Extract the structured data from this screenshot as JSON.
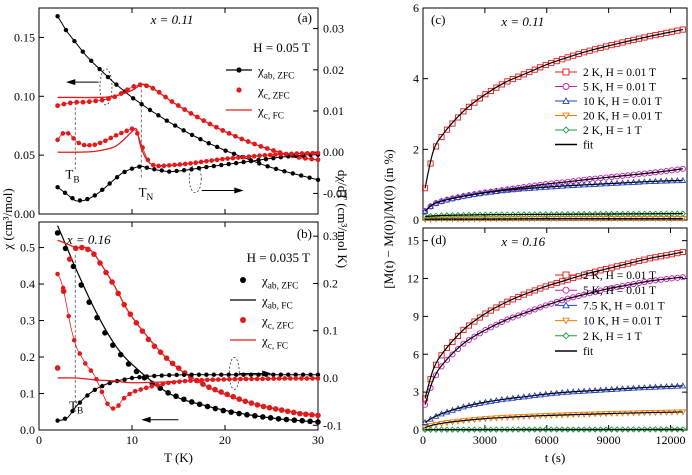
{
  "chart_data": [
    {
      "panel": "(a)",
      "type": "scatter",
      "x_param": "x = 0.11",
      "field": "H = 0.05 T",
      "xlabel": "T (K)",
      "ylabel": "χ (cm³/mol)",
      "y2label": "dχ/dT (cm³/mol K)",
      "xlim": [
        0,
        30
      ],
      "ylim": [
        0,
        0.175
      ],
      "y2lim": [
        -0.015,
        0.035
      ],
      "xticks": [
        "0",
        "10",
        "20",
        "30"
      ],
      "yticks": [
        "0.00",
        "0.05",
        "0.10",
        "0.15"
      ],
      "y2ticks": [
        "-0.01",
        "0.00",
        "0.01",
        "0.02",
        "0.03"
      ],
      "annotations": [
        "T_B",
        "T_N"
      ],
      "legend": [
        {
          "name": "χ_ab, ZFC",
          "color": "#000000",
          "style": "line-marker"
        },
        {
          "name": "χ_c, ZFC",
          "color": "#e31a1c",
          "style": "marker"
        },
        {
          "name": "χ_c, FC",
          "color": "#e31a1c",
          "style": "line"
        }
      ],
      "series": [
        {
          "name": "χ_ab, ZFC",
          "axis": "left",
          "x": [
            2,
            3,
            4,
            5,
            6,
            8,
            10,
            12,
            14,
            16,
            18,
            20,
            22,
            24,
            26,
            28,
            30
          ],
          "y": [
            0.168,
            0.155,
            0.145,
            0.135,
            0.127,
            0.112,
            0.099,
            0.088,
            0.078,
            0.069,
            0.061,
            0.054,
            0.048,
            0.042,
            0.037,
            0.033,
            0.029
          ]
        },
        {
          "name": "χ_c, ZFC",
          "axis": "left",
          "x": [
            2,
            3,
            4,
            5,
            6,
            7,
            8,
            9,
            10,
            11,
            12,
            13,
            14,
            16,
            18,
            20,
            22,
            24,
            26,
            28,
            30
          ],
          "y": [
            0.092,
            0.094,
            0.095,
            0.095,
            0.096,
            0.097,
            0.099,
            0.103,
            0.108,
            0.11,
            0.108,
            0.103,
            0.097,
            0.087,
            0.078,
            0.07,
            0.063,
            0.057,
            0.052,
            0.048,
            0.046
          ]
        },
        {
          "name": "χ_c, FC",
          "axis": "left",
          "x": [
            2,
            4,
            6,
            8,
            10,
            11,
            12,
            14,
            16,
            18,
            20,
            22,
            24,
            26,
            28,
            30
          ],
          "y": [
            0.099,
            0.099,
            0.099,
            0.1,
            0.105,
            0.11,
            0.108,
            0.097,
            0.087,
            0.078,
            0.07,
            0.063,
            0.057,
            0.052,
            0.048,
            0.046
          ]
        },
        {
          "name": "dχ_ab/dT",
          "axis": "right",
          "x": [
            2,
            3,
            4,
            5,
            6,
            7,
            8,
            9,
            10,
            11,
            12,
            14,
            16,
            18,
            20,
            22,
            24,
            26,
            28,
            30
          ],
          "y": [
            -0.0085,
            -0.0102,
            -0.0118,
            -0.0116,
            -0.0105,
            -0.0088,
            -0.0068,
            -0.005,
            -0.004,
            -0.0034,
            -0.004,
            -0.0047,
            -0.0043,
            -0.0036,
            -0.003,
            -0.0024,
            -0.0018,
            -0.0012,
            -0.0008,
            -0.0006
          ]
        },
        {
          "name": "dχ_c/dT ZFC",
          "axis": "right",
          "x": [
            2,
            2.5,
            3,
            3.5,
            4,
            5,
            6,
            7,
            8,
            9,
            10,
            10.5,
            11,
            11.5,
            12,
            13,
            14,
            16,
            18,
            20,
            22,
            24,
            26,
            28,
            30
          ],
          "y": [
            0.003,
            0.0045,
            0.0048,
            0.004,
            0.0025,
            0.0016,
            0.0018,
            0.0026,
            0.0038,
            0.0048,
            0.0057,
            0.005,
            0.002,
            -0.001,
            -0.003,
            -0.0034,
            -0.0032,
            -0.0028,
            -0.0022,
            -0.0016,
            -0.0012,
            -0.0008,
            -0.0005,
            -0.0003,
            -0.0002
          ]
        },
        {
          "name": "dχ_c/dT FC",
          "axis": "right",
          "x": [
            2,
            4,
            6,
            8,
            9,
            10,
            10.5,
            11,
            12,
            14,
            16,
            20,
            24,
            28,
            30
          ],
          "y": [
            0.0,
            0.0,
            0.0002,
            0.0012,
            0.0028,
            0.005,
            0.0055,
            0.001,
            -0.0028,
            -0.0032,
            -0.0028,
            -0.0016,
            -0.0008,
            -0.0003,
            -0.0002
          ]
        }
      ]
    },
    {
      "panel": "(b)",
      "type": "scatter",
      "x_param": "x = 0.16",
      "field": "H = 0.035 T",
      "xlabel": "T (K)",
      "ylabel": "χ (cm³/mol)",
      "y2label": "dχ/dT (cm³/mol K)",
      "xlim": [
        0,
        30
      ],
      "ylim": [
        0,
        0.57
      ],
      "y2lim": [
        -0.11,
        0.33
      ],
      "xticks": [
        "0",
        "10",
        "20",
        "30"
      ],
      "yticks": [
        "0.0",
        "0.1",
        "0.2",
        "0.3",
        "0.4",
        "0.5"
      ],
      "y2ticks": [
        "-0.1",
        "0.0",
        "0.1",
        "0.2",
        "0.3"
      ],
      "annotations": [
        "T_B"
      ],
      "legend": [
        {
          "name": "χ_ab, ZFC",
          "color": "#000000",
          "style": "marker"
        },
        {
          "name": "χ_ab, FC",
          "color": "#000000",
          "style": "line"
        },
        {
          "name": "χ_c, ZFC",
          "color": "#e31a1c",
          "style": "marker"
        },
        {
          "name": "χ_c, FC",
          "color": "#e31a1c",
          "style": "line"
        }
      ],
      "series": [
        {
          "name": "χ_ab, ZFC",
          "axis": "left",
          "x": [
            2,
            3,
            4,
            5,
            6,
            7,
            8,
            10,
            12,
            14,
            16,
            18,
            20,
            22,
            24,
            26,
            28,
            30
          ],
          "y": [
            0.54,
            0.49,
            0.43,
            0.37,
            0.32,
            0.27,
            0.23,
            0.17,
            0.13,
            0.1,
            0.08,
            0.065,
            0.052,
            0.043,
            0.036,
            0.03,
            0.026,
            0.022
          ]
        },
        {
          "name": "χ_ab, FC",
          "axis": "left",
          "x": [
            2,
            3,
            4,
            6,
            8,
            10,
            14,
            18,
            22,
            26,
            30
          ],
          "y": [
            0.56,
            0.5,
            0.44,
            0.33,
            0.24,
            0.18,
            0.1,
            0.066,
            0.044,
            0.03,
            0.022
          ]
        },
        {
          "name": "χ_c, ZFC",
          "axis": "left",
          "x": [
            2,
            2.5,
            3,
            3.5,
            4,
            5,
            6,
            7,
            8,
            9,
            10,
            12,
            14,
            16,
            18,
            20,
            22,
            24,
            26,
            28,
            30
          ],
          "y": [
            0.17,
            0.35,
            0.45,
            0.48,
            0.5,
            0.5,
            0.48,
            0.44,
            0.4,
            0.35,
            0.31,
            0.24,
            0.19,
            0.15,
            0.12,
            0.1,
            0.08,
            0.065,
            0.055,
            0.045,
            0.04
          ]
        },
        {
          "name": "χ_c, FC",
          "axis": "left",
          "x": [
            2,
            3,
            4,
            5,
            6,
            8,
            10,
            14,
            18,
            22,
            26,
            30
          ],
          "y": [
            0.52,
            0.51,
            0.5,
            0.5,
            0.48,
            0.4,
            0.31,
            0.19,
            0.12,
            0.08,
            0.055,
            0.04
          ]
        },
        {
          "name": "dχ_ab/dT",
          "axis": "right",
          "x": [
            2,
            3,
            4,
            5,
            6,
            7,
            8,
            10,
            12,
            14,
            16,
            18,
            20,
            22,
            24,
            26,
            28,
            30
          ],
          "y": [
            -0.09,
            -0.085,
            -0.06,
            -0.04,
            -0.025,
            -0.015,
            -0.008,
            0.0,
            0.004,
            0.006,
            0.007,
            0.007,
            0.007,
            0.007,
            0.007,
            0.007,
            0.007,
            0.007
          ]
        },
        {
          "name": "dχ_c/dT ZFC",
          "axis": "right",
          "x": [
            2,
            2.5,
            3,
            3.5,
            4,
            5,
            6,
            7,
            7.5,
            8,
            8.5,
            9,
            10,
            12,
            14,
            16,
            18,
            20,
            22,
            24,
            26,
            28,
            30
          ],
          "y": [
            0.22,
            0.2,
            0.15,
            0.1,
            0.065,
            0.03,
            0.005,
            -0.04,
            -0.06,
            -0.065,
            -0.06,
            -0.045,
            -0.03,
            -0.018,
            -0.01,
            -0.006,
            -0.004,
            -0.003,
            -0.002,
            -0.002,
            -0.001,
            -0.001,
            -0.001
          ]
        },
        {
          "name": "dχ_c/dT FC",
          "axis": "right",
          "x": [
            2,
            4,
            6,
            8,
            10,
            14,
            18,
            22,
            26,
            30
          ],
          "y": [
            0.0,
            0.0,
            -0.004,
            -0.006,
            -0.01,
            -0.008,
            -0.004,
            -0.002,
            -0.001,
            -0.001
          ]
        }
      ]
    },
    {
      "panel": "(c)",
      "type": "scatter",
      "x_param": "x = 0.11",
      "xlabel": "t (s)",
      "ylabel": "[M(t) − M(0)]/M(0) (in %)",
      "xlim": [
        0,
        12800
      ],
      "ylim": [
        0,
        6
      ],
      "xticks": [
        "0",
        "3000",
        "6000",
        "9000",
        "12000"
      ],
      "yticks": [
        "0",
        "2",
        "4",
        "6"
      ],
      "legend": [
        {
          "name": "2 K, H = 0.01 T",
          "color": "#e31a1c",
          "marker": "square"
        },
        {
          "name": "5 K, H = 0.01 T",
          "color": "#c51bbd",
          "marker": "circle"
        },
        {
          "name": "10 K, H = 0.01 T",
          "color": "#2041c8",
          "marker": "triangle-up"
        },
        {
          "name": "20 K, H = 0.01 T",
          "color": "#ee7a00",
          "marker": "triangle-down"
        },
        {
          "name": "2 K, H = 1 T",
          "color": "#1b9e3a",
          "marker": "diamond"
        },
        {
          "name": "fit",
          "color": "#000000",
          "marker": "line"
        }
      ],
      "series": [
        {
          "name": "2 K, H = 0.01 T",
          "x": [
            100,
            500,
            1000,
            2000,
            3000,
            4000,
            5000,
            6000,
            7000,
            8000,
            9000,
            10000,
            11000,
            12000,
            12600
          ],
          "y": [
            0.9,
            1.95,
            2.45,
            3.1,
            3.55,
            3.9,
            4.15,
            4.4,
            4.6,
            4.78,
            4.93,
            5.07,
            5.2,
            5.32,
            5.39
          ]
        },
        {
          "name": "5 K, H = 0.01 T",
          "x": [
            100,
            500,
            1000,
            2000,
            3000,
            4000,
            5000,
            6000,
            7000,
            8000,
            9000,
            10000,
            11000,
            12000,
            12600
          ],
          "y": [
            0.25,
            0.45,
            0.55,
            0.68,
            0.78,
            0.86,
            0.94,
            1.02,
            1.08,
            1.15,
            1.21,
            1.27,
            1.33,
            1.4,
            1.45
          ]
        },
        {
          "name": "10 K, H = 0.01 T",
          "x": [
            100,
            500,
            1000,
            2000,
            3000,
            4000,
            5000,
            6000,
            7000,
            8000,
            9000,
            10000,
            11000,
            12000,
            12600
          ],
          "y": [
            0.25,
            0.45,
            0.55,
            0.68,
            0.77,
            0.84,
            0.89,
            0.93,
            0.97,
            1.0,
            1.03,
            1.06,
            1.09,
            1.11,
            1.12
          ]
        },
        {
          "name": "20 K, H = 0.01 T",
          "x": [
            100,
            1000,
            3000,
            6000,
            9000,
            12600
          ],
          "y": [
            0.02,
            0.03,
            0.03,
            0.04,
            0.04,
            0.04
          ]
        },
        {
          "name": "2 K, H = 1 T",
          "x": [
            100,
            1000,
            3000,
            6000,
            9000,
            12600
          ],
          "y": [
            0.1,
            0.13,
            0.15,
            0.16,
            0.17,
            0.18
          ]
        }
      ]
    },
    {
      "panel": "(d)",
      "type": "scatter",
      "x_param": "x = 0.16",
      "xlabel": "t (s)",
      "ylabel": "[M(t) − M(0)]/M(0) (in %)",
      "xlim": [
        0,
        12800
      ],
      "ylim": [
        0,
        16
      ],
      "xticks": [
        "0",
        "3000",
        "6000",
        "9000",
        "12000"
      ],
      "yticks": [
        "0",
        "3",
        "6",
        "9",
        "12",
        "15"
      ],
      "legend": [
        {
          "name": "2 K, H = 0.01 T",
          "color": "#e31a1c",
          "marker": "square"
        },
        {
          "name": "5 K, H = 0.01 T",
          "color": "#c51bbd",
          "marker": "circle"
        },
        {
          "name": "7.5 K, H = 0.01 T",
          "color": "#2041c8",
          "marker": "triangle-up"
        },
        {
          "name": "10 K, H = 0.01 T",
          "color": "#ee7a00",
          "marker": "triangle-down"
        },
        {
          "name": "2 K, H = 1 T",
          "color": "#1b9e3a",
          "marker": "diamond"
        },
        {
          "name": "fit",
          "color": "#000000",
          "marker": "line"
        }
      ],
      "series": [
        {
          "name": "2 K, H = 0.01 T",
          "x": [
            100,
            500,
            1000,
            2000,
            3000,
            4000,
            5000,
            6000,
            7000,
            8000,
            9000,
            10000,
            11000,
            12000,
            12600
          ],
          "y": [
            2.5,
            4.8,
            6.2,
            8.0,
            9.2,
            10.1,
            10.8,
            11.4,
            11.9,
            12.4,
            12.8,
            13.2,
            13.6,
            13.9,
            14.1
          ]
        },
        {
          "name": "5 K, H = 0.01 T",
          "x": [
            100,
            500,
            1000,
            2000,
            3000,
            4000,
            5000,
            6000,
            7000,
            8000,
            9000,
            10000,
            11000,
            12000,
            12600
          ],
          "y": [
            2.0,
            4.0,
            5.3,
            6.9,
            7.9,
            8.7,
            9.3,
            9.9,
            10.4,
            10.8,
            11.2,
            11.5,
            11.8,
            12.0,
            12.1
          ]
        },
        {
          "name": "7.5 K, H = 0.01 T",
          "x": [
            100,
            500,
            1000,
            2000,
            3000,
            4000,
            5000,
            6000,
            7000,
            8000,
            9000,
            10000,
            11000,
            12000,
            12600
          ],
          "y": [
            0.6,
            1.0,
            1.35,
            1.85,
            2.2,
            2.45,
            2.65,
            2.85,
            3.0,
            3.1,
            3.2,
            3.3,
            3.38,
            3.45,
            3.5
          ]
        },
        {
          "name": "10 K, H = 0.01 T",
          "x": [
            100,
            500,
            1000,
            2000,
            3000,
            4000,
            5000,
            6000,
            7000,
            8000,
            9000,
            10000,
            11000,
            12000,
            12600
          ],
          "y": [
            0.2,
            0.4,
            0.55,
            0.75,
            0.9,
            1.0,
            1.08,
            1.15,
            1.2,
            1.25,
            1.3,
            1.34,
            1.38,
            1.41,
            1.43
          ]
        },
        {
          "name": "2 K, H = 1 T",
          "x": [
            100,
            1000,
            3000,
            6000,
            9000,
            12600
          ],
          "y": [
            0.02,
            0.03,
            0.03,
            0.04,
            0.04,
            0.05
          ]
        }
      ]
    }
  ]
}
